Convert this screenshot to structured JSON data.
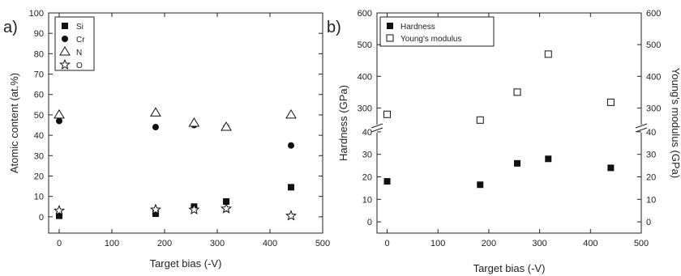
{
  "chart_data": [
    {
      "type": "scatter",
      "panel_label": "a)",
      "xlabel": "Target bias (-V)",
      "ylabel": "Atomic content (at.%)",
      "xlim": [
        -20,
        500
      ],
      "ylim": [
        -8,
        100
      ],
      "xticks": [
        0,
        100,
        200,
        300,
        400,
        500
      ],
      "yticks": [
        0,
        10,
        20,
        30,
        40,
        50,
        60,
        70,
        80,
        90,
        100
      ],
      "legend_position": "top-left",
      "series": [
        {
          "name": "Si",
          "marker": "square-filled",
          "x": [
            0,
            183,
            256,
            317,
            440
          ],
          "y": [
            0.5,
            1.5,
            5,
            7.5,
            14.5
          ]
        },
        {
          "name": "Cr",
          "marker": "circle-filled",
          "x": [
            0,
            183,
            256,
            317,
            440
          ],
          "y": [
            47,
            44,
            45,
            44,
            35
          ]
        },
        {
          "name": "N",
          "marker": "triangle-open",
          "x": [
            0,
            183,
            256,
            317,
            440
          ],
          "y": [
            50,
            51,
            46,
            44,
            50
          ]
        },
        {
          "name": "O",
          "marker": "star-open",
          "x": [
            0,
            183,
            256,
            317,
            440
          ],
          "y": [
            3,
            3.5,
            3.5,
            4,
            0.5
          ]
        }
      ]
    },
    {
      "type": "scatter",
      "panel_label": "b)",
      "xlabel": "Target bias (-V)",
      "ylabel_left": "Hardness (GPa)",
      "ylabel_right": "Young's modulus (GPa)",
      "xlim": [
        -20,
        500
      ],
      "xticks": [
        0,
        100,
        200,
        300,
        400,
        500
      ],
      "left_yticks": [
        0,
        10,
        20,
        30,
        40,
        300,
        400,
        500,
        600
      ],
      "right_yticks": [
        0,
        10,
        20,
        30,
        40,
        300,
        400,
        500,
        600
      ],
      "axis_break": "between 45 and 250 (broken y axis)",
      "legend_position": "top-left",
      "series": [
        {
          "name": "Hardness",
          "marker": "square-filled",
          "axis": "left",
          "x": [
            0,
            183,
            256,
            317,
            440
          ],
          "y": [
            18,
            16.5,
            26,
            28,
            24
          ]
        },
        {
          "name": "Young's modulus",
          "marker": "square-open",
          "axis": "right",
          "x": [
            0,
            183,
            256,
            317,
            440
          ],
          "y": [
            280,
            262,
            350,
            470,
            318
          ]
        }
      ]
    }
  ]
}
